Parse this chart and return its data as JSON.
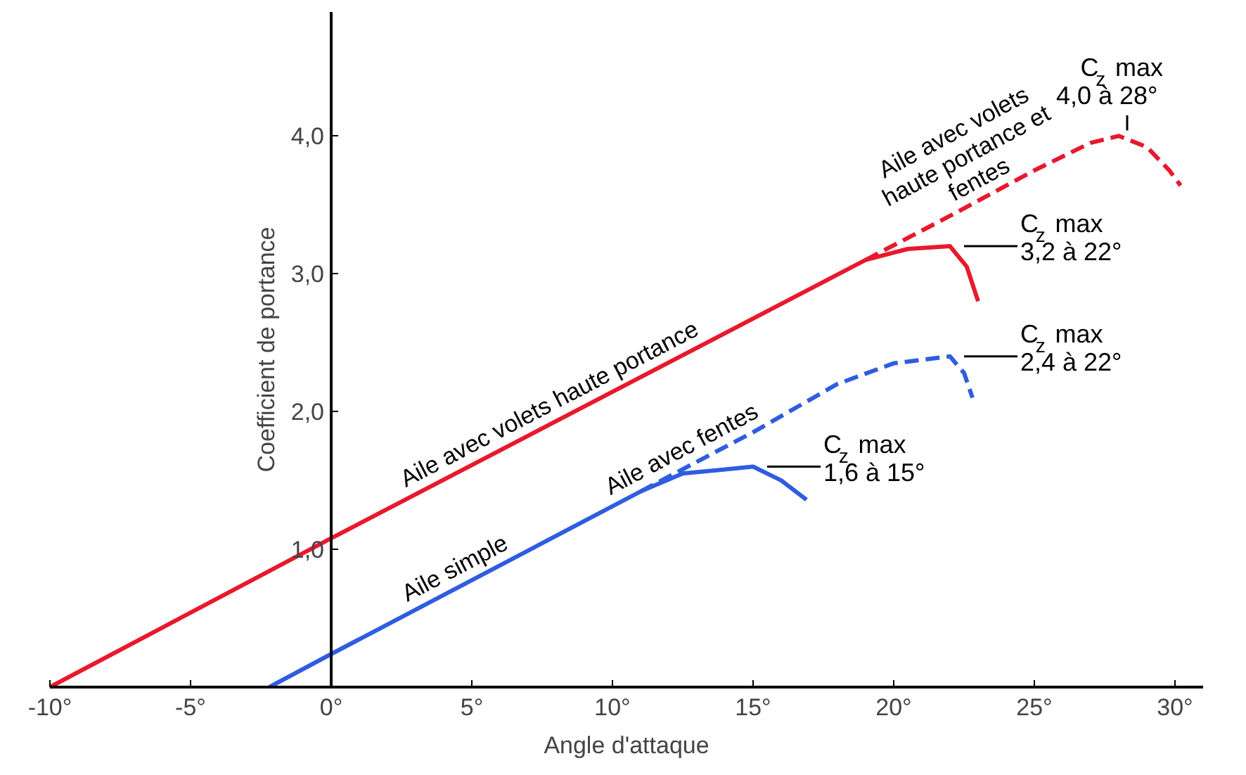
{
  "chart_data": {
    "type": "line",
    "xlabel": "Angle d'attaque",
    "ylabel": "Coefficient de portance",
    "xlim": [
      -10,
      31
    ],
    "ylim": [
      0,
      4.9
    ],
    "xticks": [
      {
        "value": -10,
        "label": "-10°"
      },
      {
        "value": -5,
        "label": "-5°"
      },
      {
        "value": 0,
        "label": "0°"
      },
      {
        "value": 5,
        "label": "5°"
      },
      {
        "value": 10,
        "label": "10°"
      },
      {
        "value": 15,
        "label": "15°"
      },
      {
        "value": 20,
        "label": "20°"
      },
      {
        "value": 25,
        "label": "25°"
      },
      {
        "value": 30,
        "label": "30°"
      }
    ],
    "yticks": [
      {
        "value": 1,
        "label": "1,0"
      },
      {
        "value": 2,
        "label": "2,0"
      },
      {
        "value": 3,
        "label": "3,0"
      },
      {
        "value": 4,
        "label": "4,0"
      }
    ],
    "grid": false,
    "series": [
      {
        "name": "Aile avec volets haute portance",
        "color": "#e8192c",
        "line_style": "solid",
        "x": [
          -10,
          0,
          19,
          20.5,
          22,
          22.6,
          23
        ],
        "values": [
          0,
          1.08,
          3.1,
          3.18,
          3.2,
          3.05,
          2.8
        ]
      },
      {
        "name": "Aile avec volets haute portance et fentes",
        "color": "#e8192c",
        "line_style": "dashed",
        "x": [
          19,
          22,
          25,
          27,
          28,
          29,
          29.8,
          30.2
        ],
        "values": [
          3.1,
          3.42,
          3.75,
          3.95,
          4.0,
          3.92,
          3.75,
          3.64
        ]
      },
      {
        "name": "Aile simple",
        "color": "#2f5de0",
        "line_style": "solid",
        "x": [
          -2.2,
          0,
          11,
          12.5,
          15,
          16,
          16.9
        ],
        "values": [
          0,
          0.24,
          1.42,
          1.55,
          1.6,
          1.5,
          1.36
        ]
      },
      {
        "name": "Aile avec fentes",
        "color": "#2f5de0",
        "line_style": "dashed",
        "x": [
          11,
          15,
          18,
          20,
          22,
          22.5,
          22.8
        ],
        "values": [
          1.42,
          1.85,
          2.2,
          2.35,
          2.4,
          2.28,
          2.1
        ]
      }
    ],
    "annotations": [
      {
        "text": "C$_{z}$ max 4,0 à 28°",
        "x": 28,
        "y": 4.0
      },
      {
        "text": "C$_{z}$ max 3,2 à 22°",
        "x": 22,
        "y": 3.2
      },
      {
        "text": "C$_{z}$ max 2,4 à 22°",
        "x": 22,
        "y": 2.4
      },
      {
        "text": "C$_{z}$ max 1,6 à 15°",
        "x": 15,
        "y": 1.6
      }
    ]
  }
}
